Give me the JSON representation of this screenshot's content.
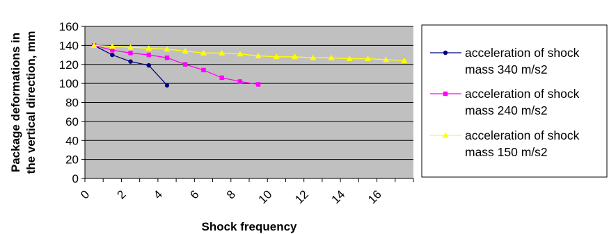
{
  "chart_data": {
    "type": "line",
    "title": "",
    "xlabel": "Shock frequency",
    "ylabel_lines": [
      "Package deformations in",
      "the vertical direction, mm"
    ],
    "x_ticks": [
      "0",
      "2",
      "4",
      "6",
      "8",
      "10",
      "12",
      "14",
      "16"
    ],
    "y_ticks": [
      "0",
      "20",
      "40",
      "60",
      "80",
      "100",
      "120",
      "140",
      "160"
    ],
    "xlim": [
      0,
      18
    ],
    "ylim": [
      0,
      160
    ],
    "grid": "horizontal",
    "legend_position": "right",
    "plot_background": "#c0c0c0",
    "series": [
      {
        "name_lines": [
          "acceleration of shock",
          "mass 340 m/s2"
        ],
        "color": "#000080",
        "marker": "circle",
        "points": [
          [
            0.5,
            140
          ],
          [
            1.5,
            130
          ],
          [
            2.5,
            123
          ],
          [
            3.5,
            119
          ],
          [
            4.5,
            98
          ]
        ]
      },
      {
        "name_lines": [
          "acceleration of shock",
          "mass 240 m/s2"
        ],
        "color": "#ff00ff",
        "marker": "square",
        "points": [
          [
            0.5,
            140
          ],
          [
            1.5,
            135
          ],
          [
            2.5,
            132
          ],
          [
            3.5,
            130
          ],
          [
            4.5,
            127
          ],
          [
            5.5,
            120
          ],
          [
            6.5,
            114
          ],
          [
            7.5,
            106
          ],
          [
            8.5,
            102
          ],
          [
            9.5,
            99
          ]
        ]
      },
      {
        "name_lines": [
          "acceleration of shock",
          "mass 150 m/s2"
        ],
        "color": "#ffff00",
        "marker": "triangle",
        "points": [
          [
            0.5,
            140
          ],
          [
            1.5,
            139
          ],
          [
            2.5,
            138
          ],
          [
            3.5,
            137
          ],
          [
            4.5,
            136
          ],
          [
            5.5,
            134
          ],
          [
            6.5,
            132
          ],
          [
            7.5,
            132
          ],
          [
            8.5,
            131
          ],
          [
            9.5,
            129
          ],
          [
            10.5,
            128
          ],
          [
            11.5,
            128
          ],
          [
            12.5,
            127
          ],
          [
            13.5,
            127
          ],
          [
            14.5,
            126
          ],
          [
            15.5,
            126
          ],
          [
            16.5,
            125
          ],
          [
            17.5,
            124
          ]
        ]
      }
    ]
  }
}
